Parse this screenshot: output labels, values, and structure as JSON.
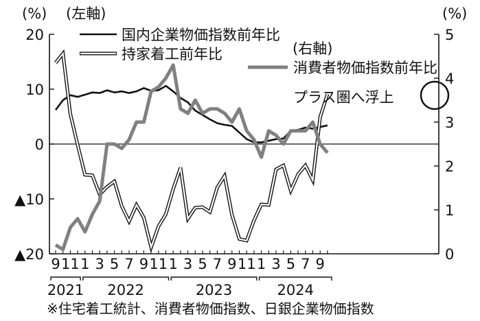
{
  "chart_data": {
    "type": "line",
    "left_unit": "(%)",
    "left_axis_label": "(左軸)",
    "right_unit": "(%)",
    "right_axis_label": "(右軸)",
    "left_ylim": [
      -20,
      20
    ],
    "right_ylim": [
      0,
      5
    ],
    "left_ticks": [
      {
        "value": 20,
        "label": "20"
      },
      {
        "value": 10,
        "label": "10"
      },
      {
        "value": 0,
        "label": "0"
      },
      {
        "value": -10,
        "label": "▲10"
      },
      {
        "value": -20,
        "label": "▲20"
      }
    ],
    "right_ticks": [
      {
        "value": 5,
        "label": "5"
      },
      {
        "value": 4,
        "label": "4"
      },
      {
        "value": 3,
        "label": "3"
      },
      {
        "value": 2,
        "label": "2"
      },
      {
        "value": 1,
        "label": "1"
      },
      {
        "value": 0,
        "label": "0"
      }
    ],
    "x": [
      "2021-09",
      "2021-10",
      "2021-11",
      "2021-12",
      "2022-01",
      "2022-02",
      "2022-03",
      "2022-04",
      "2022-05",
      "2022-06",
      "2022-07",
      "2022-08",
      "2022-09",
      "2022-10",
      "2022-11",
      "2022-12",
      "2023-01",
      "2023-02",
      "2023-03",
      "2023-04",
      "2023-05",
      "2023-06",
      "2023-07",
      "2023-08",
      "2023-09",
      "2023-10",
      "2023-11",
      "2023-12",
      "2024-01",
      "2024-02",
      "2024-03",
      "2024-04",
      "2024-05",
      "2024-06",
      "2024-07",
      "2024-08",
      "2024-09",
      "2024-10"
    ],
    "x_tick_labels": [
      {
        "x": "2021-09",
        "label": "9"
      },
      {
        "x": "2021-11",
        "label": "11"
      },
      {
        "x": "2022-01",
        "label": "1"
      },
      {
        "x": "2022-03",
        "label": "3"
      },
      {
        "x": "2022-05",
        "label": "5"
      },
      {
        "x": "2022-07",
        "label": "7"
      },
      {
        "x": "2022-09",
        "label": "9"
      },
      {
        "x": "2022-11",
        "label": "11"
      },
      {
        "x": "2023-01",
        "label": "1"
      },
      {
        "x": "2023-03",
        "label": "3"
      },
      {
        "x": "2023-05",
        "label": "5"
      },
      {
        "x": "2023-07",
        "label": "7"
      },
      {
        "x": "2023-09",
        "label": "9"
      },
      {
        "x": "2023-11",
        "label": "11"
      },
      {
        "x": "2024-01",
        "label": "1"
      },
      {
        "x": "2024-03",
        "label": "3"
      },
      {
        "x": "2024-05",
        "label": "5"
      },
      {
        "x": "2024-07",
        "label": "7"
      },
      {
        "x": "2024-09",
        "label": "9"
      }
    ],
    "years": [
      {
        "label": "2021",
        "from": "2021-09",
        "to": "2021-12"
      },
      {
        "label": "2022",
        "from": "2022-01",
        "to": "2022-12"
      },
      {
        "label": "2023",
        "from": "2023-01",
        "to": "2023-12"
      },
      {
        "label": "2024",
        "from": "2024-01",
        "to": "2024-10"
      }
    ],
    "series": [
      {
        "name": "国内企業物価指数前年比",
        "axis": "left",
        "style": "solid",
        "color": "#111111",
        "values": [
          6.2,
          8.0,
          8.9,
          8.6,
          9.0,
          9.4,
          9.3,
          9.8,
          9.4,
          9.6,
          9.3,
          9.6,
          10.2,
          9.7,
          9.8,
          10.6,
          9.6,
          8.4,
          7.6,
          6.1,
          5.3,
          4.5,
          3.8,
          3.5,
          3.3,
          2.1,
          0.9,
          0.3,
          0.3,
          0.6,
          0.9,
          1.0,
          2.4,
          2.6,
          3.0,
          2.8,
          3.1,
          3.4
        ]
      },
      {
        "name": "持家着工前年比",
        "axis": "left",
        "style": "double",
        "color": "#111111",
        "values": [
          14.8,
          16.5,
          5.5,
          -0.2,
          -5.6,
          -5.7,
          -9.2,
          -7.8,
          -6.8,
          -11.3,
          -14.1,
          -11.1,
          -13.4,
          -18.8,
          -15.0,
          -12.8,
          -8.2,
          -4.3,
          -13.6,
          -11.6,
          -11.5,
          -12.4,
          -7.9,
          -5.8,
          -12.9,
          -17.3,
          -17.6,
          -13.9,
          -11.0,
          -11.1,
          -4.6,
          -3.9,
          -8.5,
          -5.5,
          -3.9,
          -6.6,
          4.9,
          9.1
        ]
      },
      {
        "name": "消費者物価指数前年比",
        "axis": "right",
        "style": "thick",
        "color": "#808080",
        "values": [
          0.2,
          0.1,
          0.6,
          0.8,
          0.5,
          0.9,
          1.2,
          2.5,
          2.5,
          2.4,
          2.6,
          3.0,
          3.0,
          3.7,
          3.8,
          4.0,
          4.3,
          3.3,
          3.2,
          3.5,
          3.2,
          3.3,
          3.3,
          3.2,
          3.0,
          3.3,
          2.8,
          2.6,
          2.2,
          2.8,
          2.7,
          2.5,
          2.8,
          2.8,
          2.8,
          3.0,
          2.5,
          2.3
        ]
      }
    ],
    "annotation": "プラス圏へ浮上",
    "note": "※住宅着工統計、消費者物価指数、日銀企業物価指数"
  }
}
